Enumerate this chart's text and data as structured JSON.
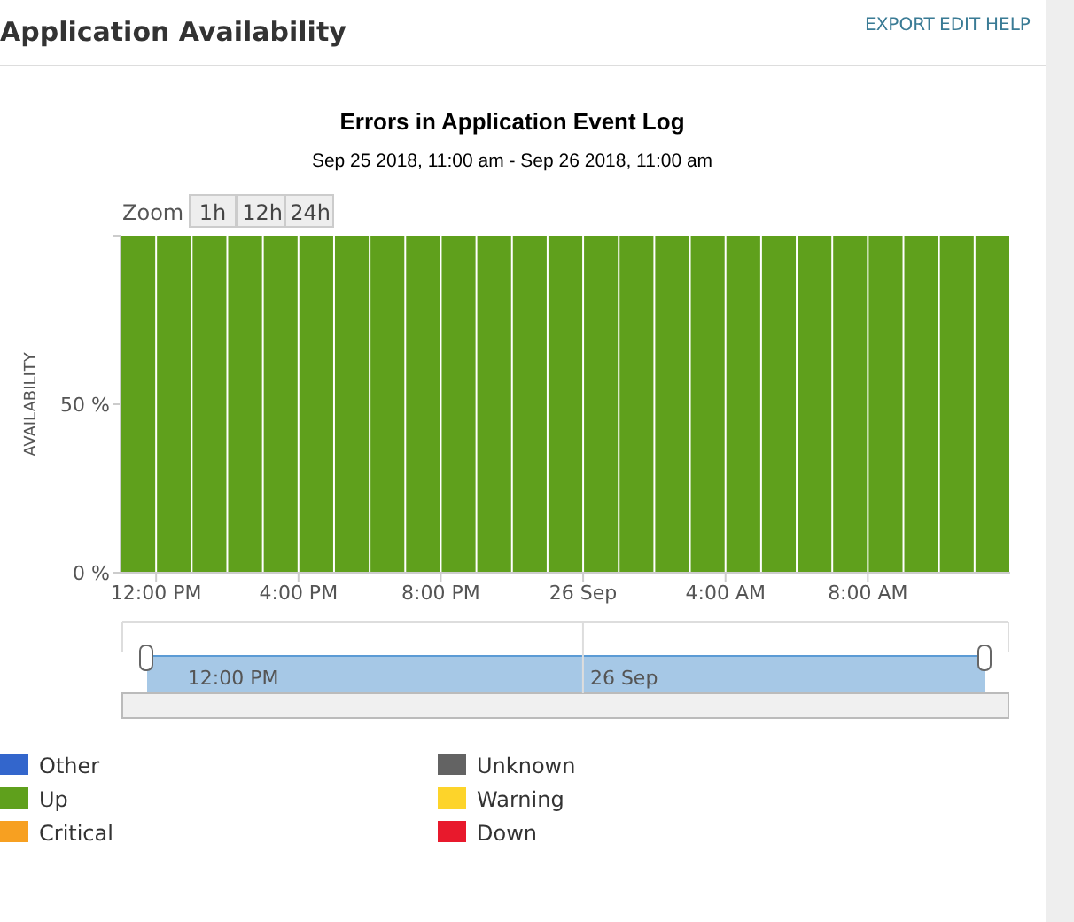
{
  "chart_data": {
    "type": "bar",
    "title": "Errors in Application Event Log",
    "subtitle": "Sep 25 2018, 11:00 am - Sep 26 2018, 11:00 am",
    "ylabel": "AVAILABILITY",
    "annotations": [
      "Application Availability",
      "EXPORT",
      "EDIT",
      "HELP",
      "Zoom",
      "1h",
      "12h",
      "24h",
      "12:00 PM",
      "26 Sep"
    ],
    "x": [
      "2018-09-25T11:00",
      "2018-09-25T12:00",
      "2018-09-25T13:00",
      "2018-09-25T14:00",
      "2018-09-25T15:00",
      "2018-09-25T16:00",
      "2018-09-25T17:00",
      "2018-09-25T18:00",
      "2018-09-25T19:00",
      "2018-09-25T20:00",
      "2018-09-25T21:00",
      "2018-09-25T22:00",
      "2018-09-25T23:00",
      "2018-09-26T00:00",
      "2018-09-26T01:00",
      "2018-09-26T02:00",
      "2018-09-26T03:00",
      "2018-09-26T04:00",
      "2018-09-26T05:00",
      "2018-09-26T06:00",
      "2018-09-26T07:00",
      "2018-09-26T08:00",
      "2018-09-26T09:00",
      "2018-09-26T10:00",
      "2018-09-26T11:00"
    ],
    "xlim": [
      "2018-09-25T11:00",
      "2018-09-26T12:00"
    ],
    "xticks": [
      {
        "value": "2018-09-25T12:00",
        "label": "12:00 PM"
      },
      {
        "value": "2018-09-25T16:00",
        "label": "4:00 PM"
      },
      {
        "value": "2018-09-25T20:00",
        "label": "8:00 PM"
      },
      {
        "value": "2018-09-26T00:00",
        "label": "26 Sep"
      },
      {
        "value": "2018-09-26T04:00",
        "label": "4:00 AM"
      },
      {
        "value": "2018-09-26T08:00",
        "label": "8:00 AM"
      }
    ],
    "ylim": [
      0,
      100
    ],
    "yticks": [
      {
        "value": 0,
        "label": "0 %"
      },
      {
        "value": 50,
        "label": "50 %"
      },
      {
        "value": 100,
        "label": null
      }
    ],
    "legend": "bottom",
    "series": [
      {
        "name": "Up",
        "color": "#5fa01c",
        "values": [
          100,
          100,
          100,
          100,
          100,
          100,
          100,
          100,
          100,
          100,
          100,
          100,
          100,
          100,
          100,
          100,
          100,
          100,
          100,
          100,
          100,
          100,
          100,
          100,
          100
        ]
      },
      {
        "name": "Other",
        "color": "#3366cc",
        "values": [
          null,
          null,
          null,
          null,
          null,
          null,
          null,
          null,
          null,
          null,
          null,
          null,
          null,
          null,
          null,
          null,
          null,
          null,
          null,
          null,
          null,
          null,
          null,
          null,
          null
        ]
      },
      {
        "name": "Critical",
        "color": "#f7a021",
        "values": [
          null,
          null,
          null,
          null,
          null,
          null,
          null,
          null,
          null,
          null,
          null,
          null,
          null,
          null,
          null,
          null,
          null,
          null,
          null,
          null,
          null,
          null,
          null,
          null,
          null
        ]
      },
      {
        "name": "Unknown",
        "color": "#636363",
        "values": [
          null,
          null,
          null,
          null,
          null,
          null,
          null,
          null,
          null,
          null,
          null,
          null,
          null,
          null,
          null,
          null,
          null,
          null,
          null,
          null,
          null,
          null,
          null,
          null,
          null
        ]
      },
      {
        "name": "Warning",
        "color": "#fdd42a",
        "values": [
          null,
          null,
          null,
          null,
          null,
          null,
          null,
          null,
          null,
          null,
          null,
          null,
          null,
          null,
          null,
          null,
          null,
          null,
          null,
          null,
          null,
          null,
          null,
          null,
          null
        ]
      },
      {
        "name": "Down",
        "color": "#e8192c",
        "values": [
          null,
          null,
          null,
          null,
          null,
          null,
          null,
          null,
          null,
          null,
          null,
          null,
          null,
          null,
          null,
          null,
          null,
          null,
          null,
          null,
          null,
          null,
          null,
          null,
          null
        ]
      }
    ]
  }
}
